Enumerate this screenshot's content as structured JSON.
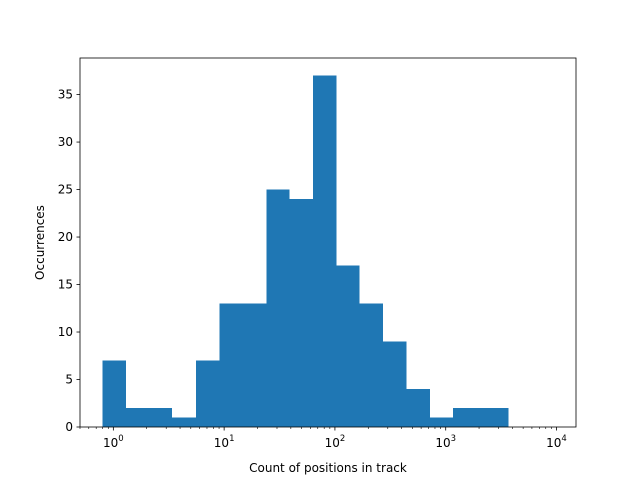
{
  "chart_data": {
    "type": "bar",
    "title": "",
    "xlabel": "Count of positions in track",
    "ylabel": "Occurrences",
    "x_scale": "log",
    "xlim": [
      0.5,
      15000
    ],
    "ylim": [
      0,
      38.85
    ],
    "bar_color": "#1f77b4",
    "grid": false,
    "legend": "none",
    "bins": [
      {
        "from": 0.8,
        "to": 1.3,
        "count": 7
      },
      {
        "from": 1.3,
        "to": 2.1,
        "count": 2
      },
      {
        "from": 2.1,
        "to": 3.4,
        "count": 2
      },
      {
        "from": 3.4,
        "to": 5.6,
        "count": 1
      },
      {
        "from": 5.6,
        "to": 9.1,
        "count": 7
      },
      {
        "from": 9.1,
        "to": 14.8,
        "count": 13
      },
      {
        "from": 14.8,
        "to": 24.0,
        "count": 13
      },
      {
        "from": 24.0,
        "to": 39.0,
        "count": 25
      },
      {
        "from": 39.0,
        "to": 63.4,
        "count": 24
      },
      {
        "from": 63.4,
        "to": 103.0,
        "count": 37
      },
      {
        "from": 103.0,
        "to": 167.0,
        "count": 17
      },
      {
        "from": 167.0,
        "to": 272.0,
        "count": 13
      },
      {
        "from": 272.0,
        "to": 442.0,
        "count": 9
      },
      {
        "from": 442.0,
        "to": 718.0,
        "count": 4
      },
      {
        "from": 718.0,
        "to": 1166.0,
        "count": 1
      },
      {
        "from": 1166.0,
        "to": 1895.0,
        "count": 2
      },
      {
        "from": 1895.0,
        "to": 3700.0,
        "count": 2
      }
    ],
    "x_ticks": [
      {
        "value": 1,
        "base": "10",
        "exp": "0"
      },
      {
        "value": 10,
        "base": "10",
        "exp": "1"
      },
      {
        "value": 100,
        "base": "10",
        "exp": "2"
      },
      {
        "value": 1000,
        "base": "10",
        "exp": "3"
      },
      {
        "value": 10000,
        "base": "10",
        "exp": "4"
      }
    ],
    "y_ticks": [
      0,
      5,
      10,
      15,
      20,
      25,
      30,
      35
    ]
  }
}
